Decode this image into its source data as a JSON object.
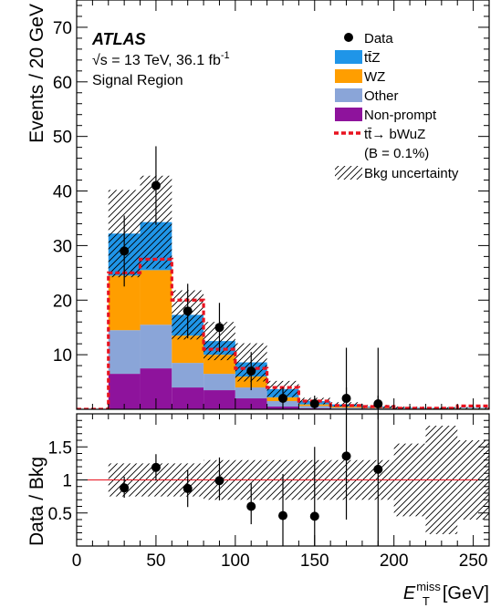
{
  "chart_data": [
    {
      "type": "bar",
      "stacked": true,
      "x_edges": [
        0,
        20,
        40,
        60,
        80,
        100,
        120,
        140,
        160,
        180,
        200,
        220,
        240,
        260
      ],
      "xlim": [
        0,
        260
      ],
      "ylim": [
        0,
        75
      ],
      "ylabel": "Events / 20 GeV",
      "yticks": [
        10,
        20,
        30,
        40,
        50,
        60,
        70
      ],
      "annotations": {
        "experiment": "ATLAS",
        "energy": "√s = 13 TeV, 36.1 fb",
        "energy_sup": "-1",
        "region": "Signal Region"
      },
      "legend": {
        "placement": "top-right",
        "entries": [
          {
            "key": "data",
            "label": "Data"
          },
          {
            "key": "ttz",
            "label": "tt̄Z"
          },
          {
            "key": "wz",
            "label": "WZ"
          },
          {
            "key": "other",
            "label": "Other"
          },
          {
            "key": "nonprompt",
            "label": "Non-prompt"
          },
          {
            "key": "signal",
            "label": "tt̄→ bWuZ"
          },
          {
            "key": "signal_note",
            "label": "(B = 0.1%)"
          },
          {
            "key": "unc",
            "label": "Bkg uncertainty"
          }
        ]
      },
      "colors": {
        "ttz": "#1f95e8",
        "wz": "#ff9e00",
        "other": "#8aa5d8",
        "nonprompt": "#8e139c",
        "signal": "#e8121f"
      },
      "series": [
        {
          "key": "nonprompt",
          "values": [
            0,
            6.5,
            7.5,
            4,
            3.5,
            2,
            0.5,
            0.2,
            0.1,
            0.1,
            0.05,
            0.05,
            0.05
          ]
        },
        {
          "key": "other",
          "values": [
            0,
            8,
            8,
            4.5,
            3,
            2,
            1,
            0.4,
            0.2,
            0.1,
            0.1,
            0.05,
            0.05
          ]
        },
        {
          "key": "wz",
          "values": [
            0,
            10,
            10,
            5,
            3.5,
            2,
            0.7,
            0.3,
            0.2,
            0.1,
            0.05,
            0.05,
            0.05
          ]
        },
        {
          "key": "ttz",
          "values": [
            0,
            7.7,
            8.8,
            3.8,
            2.5,
            2.6,
            1.5,
            0.6,
            0.4,
            0.2,
            0.1,
            0.1,
            0.1
          ]
        }
      ],
      "signal": {
        "key": "signal",
        "values": [
          0,
          25,
          27.5,
          20,
          11,
          7.5,
          4,
          1.5,
          0.7,
          0.5,
          0.2,
          0.2,
          0.6
        ]
      },
      "bkg_uncertainty": [
        0,
        8,
        8.5,
        4.5,
        3.5,
        3.5,
        1.5,
        0.6,
        0.4,
        0.3,
        0.2,
        0.15,
        0.15
      ],
      "data_points": [
        {
          "x": 30,
          "y": 29,
          "err": 6.5
        },
        {
          "x": 50,
          "y": 41,
          "err": 7.2
        },
        {
          "x": 70,
          "y": 18,
          "err": 5.0
        },
        {
          "x": 90,
          "y": 15,
          "err": 4.5
        },
        {
          "x": 110,
          "y": 7,
          "err": 3.5
        },
        {
          "x": 130,
          "y": 2,
          "err": 2.0
        },
        {
          "x": 150,
          "y": 1,
          "err": 1.5
        },
        {
          "x": 170,
          "y": 2,
          "err": 2.0
        },
        {
          "x": 190,
          "y": 1,
          "err": 1.5
        }
      ]
    },
    {
      "type": "scatter",
      "xlim": [
        0,
        260
      ],
      "ylim": [
        0,
        2
      ],
      "xlabel": "E",
      "xlabel_sup": "miss",
      "xlabel_sub": "T",
      "xlabel_unit": "[GeV]",
      "ylabel": "Data / Bkg",
      "xticks": [
        0,
        50,
        100,
        150,
        200,
        250
      ],
      "yticks": [
        0.5,
        1,
        1.5
      ],
      "reference_line": 1,
      "uncertainty_band": [
        {
          "x0": 20,
          "x1": 40,
          "lo": 0.75,
          "hi": 1.25
        },
        {
          "x0": 40,
          "x1": 60,
          "lo": 0.75,
          "hi": 1.25
        },
        {
          "x0": 60,
          "x1": 80,
          "lo": 0.75,
          "hi": 1.25
        },
        {
          "x0": 80,
          "x1": 100,
          "lo": 0.7,
          "hi": 1.3
        },
        {
          "x0": 100,
          "x1": 120,
          "lo": 0.7,
          "hi": 1.3
        },
        {
          "x0": 120,
          "x1": 140,
          "lo": 0.7,
          "hi": 1.3
        },
        {
          "x0": 140,
          "x1": 160,
          "lo": 0.7,
          "hi": 1.3
        },
        {
          "x0": 160,
          "x1": 180,
          "lo": 0.7,
          "hi": 1.3
        },
        {
          "x0": 180,
          "x1": 200,
          "lo": 0.7,
          "hi": 1.3
        },
        {
          "x0": 200,
          "x1": 220,
          "lo": 0.45,
          "hi": 1.55
        },
        {
          "x0": 220,
          "x1": 240,
          "lo": 0.18,
          "hi": 1.82
        },
        {
          "x0": 240,
          "x1": 260,
          "lo": 0.4,
          "hi": 1.6
        }
      ],
      "points": [
        {
          "x": 30,
          "y": 0.88,
          "err_lo": 0.15,
          "err_hi": 0.17
        },
        {
          "x": 50,
          "y": 1.19,
          "err_lo": 0.2,
          "err_hi": 0.2
        },
        {
          "x": 70,
          "y": 0.87,
          "err_lo": 0.28,
          "err_hi": 0.28
        },
        {
          "x": 90,
          "y": 0.99,
          "err_lo": 0.3,
          "err_hi": 0.35
        },
        {
          "x": 110,
          "y": 0.6,
          "err_lo": 0.27,
          "err_hi": 0.35
        },
        {
          "x": 130,
          "y": 0.46,
          "err_lo": 0.46,
          "err_hi": 0.63
        },
        {
          "x": 150,
          "y": 0.45,
          "err_lo": 0.45,
          "err_hi": 1.05
        },
        {
          "x": 170,
          "y": 1.36,
          "err_lo": 0.96,
          "err_hi": 1.64
        },
        {
          "x": 190,
          "y": 1.16,
          "err_lo": 1.16,
          "err_hi": 1.84
        }
      ]
    }
  ]
}
